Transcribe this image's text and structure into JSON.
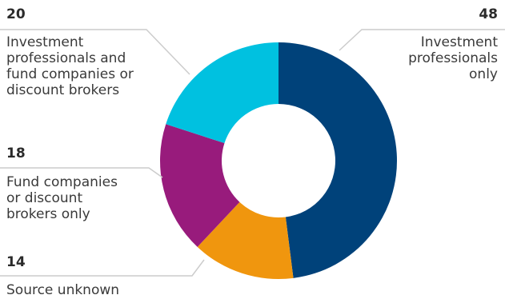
{
  "chart_data": {
    "type": "pie",
    "variant": "donut",
    "slices": [
      {
        "value": 48,
        "label": "Investment\nprofessionals\nonly",
        "color": "#00427a"
      },
      {
        "value": 14,
        "label": "Source unknown",
        "color": "#f0960e"
      },
      {
        "value": 18,
        "label": "Fund companies\nor discount\nbrokers only",
        "color": "#981b7c"
      },
      {
        "value": 20,
        "label": "Investment\nprofessionals and\nfund companies or\ndiscount brokers",
        "color": "#00c1e0"
      }
    ],
    "start_angle_deg": 0,
    "direction": "clockwise",
    "leader_color": "#cccccc",
    "legend": "none"
  }
}
